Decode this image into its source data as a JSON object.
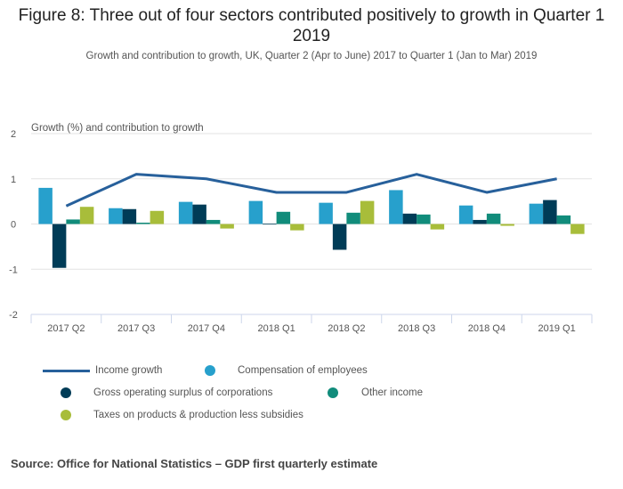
{
  "title": "Figure 8: Three out of four sectors contributed positively to growth in Quarter 1 2019",
  "subtitle": "Growth and contribution to growth, UK, Quarter 2 (Apr to June) 2017 to Quarter 1 (Jan to Mar) 2019",
  "source": "Source: Office for National Statistics – GDP first quarterly estimate",
  "chart_data": {
    "type": "bar",
    "title": "Figure 8: Three out of four sectors contributed positively to growth in Quarter 1 2019",
    "ylabel": "Growth (%) and contribution to growth",
    "xlabel": "",
    "ylim": [
      -2,
      2
    ],
    "yticks": [
      "2",
      "1",
      "0",
      "-1",
      "-2"
    ],
    "ytick_values": [
      2,
      1,
      0,
      -1,
      -2
    ],
    "grid": true,
    "legend_position": "bottom",
    "categories": [
      "2017 Q2",
      "2017 Q3",
      "2017 Q4",
      "2018 Q1",
      "2018 Q2",
      "2018 Q3",
      "2018 Q4",
      "2019 Q1"
    ],
    "line_series": {
      "name": "Income growth",
      "color": "#27609b",
      "values": [
        0.4,
        1.1,
        1.0,
        0.7,
        0.7,
        1.1,
        0.7,
        1.0
      ]
    },
    "series": [
      {
        "name": "Compensation of employees",
        "color": "#27a0cc",
        "values": [
          0.8,
          0.35,
          0.49,
          0.51,
          0.47,
          0.75,
          0.41,
          0.45
        ]
      },
      {
        "name": "Gross operating surplus of corporations",
        "color": "#003c57",
        "values": [
          -0.97,
          0.33,
          0.43,
          0.01,
          -0.57,
          0.23,
          0.09,
          0.53
        ]
      },
      {
        "name": "Other income",
        "color": "#118c7b",
        "values": [
          0.1,
          0.03,
          0.09,
          0.27,
          0.25,
          0.21,
          0.23,
          0.19
        ]
      },
      {
        "name": "Taxes on products & production less subsidies",
        "color": "#a8bd3a",
        "values": [
          0.38,
          0.29,
          -0.1,
          -0.14,
          0.51,
          -0.12,
          -0.04,
          -0.22
        ]
      }
    ]
  },
  "legend": [
    {
      "label": "Income growth",
      "kind": "line",
      "color": "#27609b"
    },
    {
      "label": "Compensation of employees",
      "kind": "dot",
      "color": "#27a0cc"
    },
    {
      "label": "Gross operating surplus of corporations",
      "kind": "dot",
      "color": "#003c57"
    },
    {
      "label": "Other income",
      "kind": "dot",
      "color": "#118c7b"
    },
    {
      "label": "Taxes on products & production less subsidies",
      "kind": "dot",
      "color": "#a8bd3a"
    }
  ]
}
